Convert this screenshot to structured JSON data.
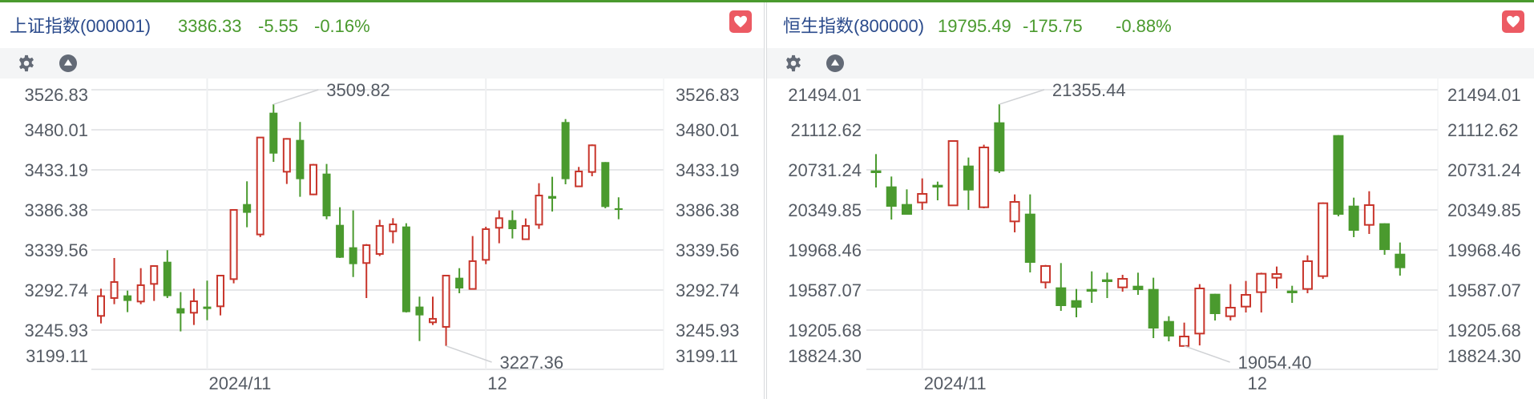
{
  "colors": {
    "up": "#c8352b",
    "down": "#4a9a2e",
    "title": "#2b4b8c",
    "quote": "#4a9a2e",
    "heart_bg": "#ec5a63",
    "icon": "#636a76"
  },
  "toolbar": {
    "icons": [
      "gear-icon",
      "collapse-up-icon"
    ]
  },
  "panels": [
    {
      "title": "上证指数(000001)",
      "price": "3386.33",
      "change": "-5.55",
      "pct": "-0.16%",
      "favorite_icon": "heart-icon"
    },
    {
      "title": "恒生指数(800000)",
      "price": "19795.49",
      "change": "-175.75",
      "pct": "-0.88%",
      "favorite_icon": "heart-icon"
    }
  ],
  "chart_data": [
    {
      "type": "candlestick",
      "y_ticks": [
        "3526.83",
        "3480.01",
        "3433.19",
        "3386.38",
        "3339.56",
        "3292.74",
        "3245.93",
        "3199.11"
      ],
      "grid": true,
      "x_labels": [
        {
          "label": "2024/11",
          "index": 8
        },
        {
          "label": "12",
          "index": 29
        }
      ],
      "annotations": {
        "high": "3509.82",
        "low": "3227.36"
      },
      "ohlc_columns": [
        "open",
        "high",
        "low",
        "close"
      ],
      "candles": [
        [
          3262.5,
          3294.3,
          3253.7,
          3285.6
        ],
        [
          3283.4,
          3330.2,
          3276.2,
          3302.1
        ],
        [
          3286.5,
          3292.1,
          3266.9,
          3280.0
        ],
        [
          3279.3,
          3318.3,
          3276.2,
          3298.4
        ],
        [
          3299.9,
          3321.0,
          3280.0,
          3320.8
        ],
        [
          3325.8,
          3339.3,
          3283.4,
          3285.6
        ],
        [
          3271.5,
          3290.3,
          3244.4,
          3265.3
        ],
        [
          3266.2,
          3294.3,
          3251.9,
          3279.6
        ],
        [
          3273.4,
          3303.7,
          3257.5,
          3270.6
        ],
        [
          3273.7,
          3309.9,
          3263.1,
          3309.6
        ],
        [
          3305.5,
          3386.6,
          3300.6,
          3386.4
        ],
        [
          3393.2,
          3419.8,
          3366.1,
          3383.0
        ],
        [
          3357.7,
          3471.5,
          3354.6,
          3471.0
        ],
        [
          3500.0,
          3509.82,
          3442.6,
          3452.2
        ],
        [
          3431.0,
          3470.3,
          3416.7,
          3469.4
        ],
        [
          3468.2,
          3489.1,
          3401.7,
          3422.3
        ],
        [
          3404.5,
          3440.1,
          3403.6,
          3439.1
        ],
        [
          3428.8,
          3440.1,
          3375.5,
          3378.9
        ],
        [
          3368.9,
          3389.5,
          3330.2,
          3330.5
        ],
        [
          3342.7,
          3385.8,
          3308.0,
          3323.0
        ],
        [
          3324.3,
          3346.4,
          3283.4,
          3345.2
        ],
        [
          3334.9,
          3374.8,
          3332.4,
          3367.7
        ],
        [
          3361.4,
          3376.7,
          3347.4,
          3369.5
        ],
        [
          3367.0,
          3370.8,
          3266.5,
          3266.9
        ],
        [
          3273.4,
          3285.0,
          3233.1,
          3263.1
        ],
        [
          3255.0,
          3285.0,
          3251.9,
          3259.1
        ],
        [
          3249.7,
          3310.5,
          3227.36,
          3309.6
        ],
        [
          3307.1,
          3318.3,
          3289.0,
          3294.6
        ],
        [
          3294.0,
          3355.8,
          3293.4,
          3326.5
        ],
        [
          3328.0,
          3366.7,
          3323.0,
          3363.9
        ],
        [
          3365.5,
          3385.8,
          3347.4,
          3376.7
        ],
        [
          3374.5,
          3385.8,
          3353.0,
          3363.9
        ],
        [
          3352.1,
          3376.4,
          3352.1,
          3367.7
        ],
        [
          3369.2,
          3417.6,
          3364.2,
          3403.2
        ],
        [
          3402.6,
          3425.1,
          3384.5,
          3399.5
        ],
        [
          3489.1,
          3492.5,
          3416.3,
          3422.3
        ],
        [
          3413.9,
          3436.6,
          3413.9,
          3431.3
        ],
        [
          3430.7,
          3462.9,
          3425.7,
          3461.9
        ],
        [
          3442.3,
          3442.3,
          3388.3,
          3389.8
        ],
        [
          3388.3,
          3401.1,
          3375.5,
          3386.33
        ]
      ]
    },
    {
      "type": "candlestick",
      "y_ticks": [
        "21494.01",
        "21112.62",
        "20731.24",
        "20349.85",
        "19968.46",
        "19587.07",
        "19205.68",
        "18824.30"
      ],
      "grid": true,
      "x_labels": [
        {
          "label": "2024/11",
          "index": 3
        },
        {
          "label": "12",
          "index": 24
        }
      ],
      "annotations": {
        "high": "21355.44",
        "low": "19054.40"
      },
      "ohlc_columns": [
        "open",
        "high",
        "low",
        "close"
      ],
      "candles": [
        [
          20726.1,
          20881.2,
          20563.4,
          20700.7
        ],
        [
          20573.6,
          20667.7,
          20258.3,
          20380.3
        ],
        [
          20405.8,
          20545.6,
          20304.1,
          20304.1
        ],
        [
          20421.0,
          20649.9,
          20349.8,
          20502.4
        ],
        [
          20588.8,
          20619.3,
          20441.4,
          20563.4
        ],
        [
          20393.1,
          21005.8,
          20393.1,
          21005.8
        ],
        [
          20771.9,
          20848.2,
          20349.8,
          20535.4
        ],
        [
          20375.3,
          20970.2,
          20365.1,
          20944.8
        ],
        [
          21183.8,
          21355.44,
          20700.7,
          20716.0
        ],
        [
          20240.5,
          20497.3,
          20136.3,
          20426.1
        ],
        [
          20314.2,
          20497.3,
          19754.9,
          19846.4
        ],
        [
          19660.8,
          19826.1,
          19602.3,
          19815.9
        ],
        [
          19612.5,
          19843.9,
          19388.7,
          19434.5
        ],
        [
          19490.4,
          19597.2,
          19327.7,
          19419.2
        ],
        [
          19597.2,
          19765.0,
          19465.0,
          19571.8
        ],
        [
          19688.8,
          19752.3,
          19510.8,
          19663.3
        ],
        [
          19612.5,
          19732.0,
          19571.8,
          19693.8
        ],
        [
          19627.7,
          19752.3,
          19541.3,
          19587.1
        ],
        [
          19597.2,
          19704.0,
          19129.4,
          19220.9
        ],
        [
          19292.1,
          19337.9,
          19098.9,
          19144.6
        ],
        [
          19054.4,
          19276.9,
          19054.4,
          19144.6
        ],
        [
          19172.6,
          19643.0,
          19060.0,
          19602.3
        ],
        [
          19551.5,
          19551.5,
          19297.2,
          19358.2
        ],
        [
          19337.9,
          19643.0,
          19297.2,
          19419.2
        ],
        [
          19429.4,
          19673.5,
          19373.5,
          19541.3
        ],
        [
          19566.7,
          19752.3,
          19373.5,
          19742.2
        ],
        [
          19704.0,
          19810.8,
          19602.3,
          19739.6
        ],
        [
          19582.0,
          19627.7,
          19465.0,
          19556.5
        ],
        [
          19597.2,
          19917.6,
          19556.5,
          19861.7
        ],
        [
          19719.3,
          20421.0,
          19693.8,
          20413.4
        ],
        [
          21061.8,
          21061.8,
          20288.8,
          20304.1
        ],
        [
          20390.5,
          20466.8,
          20090.5,
          20151.5
        ],
        [
          20207.4,
          20527.8,
          20121.0,
          20395.6
        ],
        [
          20222.7,
          20222.7,
          19922.7,
          19968.4
        ],
        [
          19932.8,
          20039.6,
          19724.4,
          19795.49
        ]
      ]
    }
  ]
}
